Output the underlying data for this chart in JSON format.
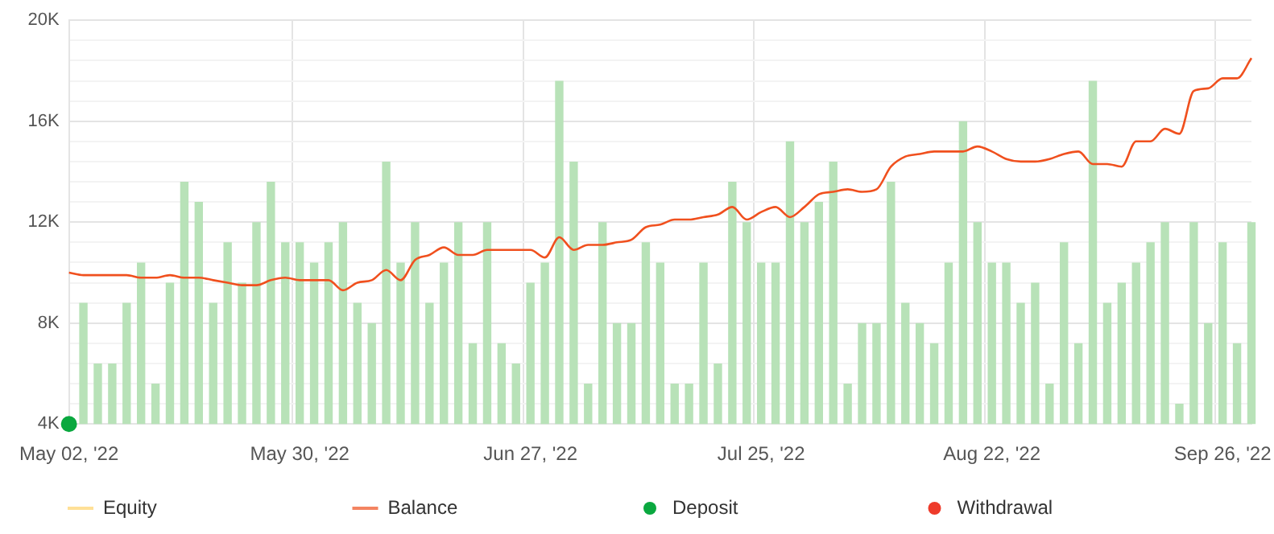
{
  "chart_data": {
    "type": "bar",
    "categories": [
      "May 02, '22",
      null,
      null,
      null,
      null,
      null,
      null,
      null,
      null,
      null,
      null,
      null,
      null,
      null,
      null,
      null,
      "May 30, '22",
      null,
      null,
      null,
      null,
      null,
      null,
      null,
      null,
      null,
      null,
      null,
      null,
      null,
      null,
      null,
      "Jun 27, '22",
      null,
      null,
      null,
      null,
      null,
      null,
      null,
      null,
      null,
      null,
      null,
      null,
      null,
      null,
      null,
      "Jul 25, '22",
      null,
      null,
      null,
      null,
      null,
      null,
      null,
      null,
      null,
      null,
      null,
      null,
      null,
      null,
      null,
      "Aug 22, '22",
      null,
      null,
      null,
      null,
      null,
      null,
      null,
      null,
      null,
      null,
      null,
      null,
      null,
      null,
      null,
      "Sep 26, '22",
      null,
      null
    ],
    "series": [
      {
        "color": "#b8e2b8",
        "values": [
          null,
          8800,
          6400,
          6400,
          8800,
          10400,
          5600,
          9600,
          13600,
          12800,
          8800,
          11200,
          9600,
          12000,
          13600,
          11200,
          11200,
          10400,
          11200,
          12000,
          8800,
          8000,
          14400,
          10400,
          12000,
          8800,
          10400,
          12000,
          7200,
          12000,
          7200,
          6400,
          9600,
          10400,
          17600,
          14400,
          5600,
          12000,
          8000,
          8000,
          11200,
          10400,
          5600,
          5600,
          10400,
          6400,
          13600,
          12000,
          10400,
          10400,
          15200,
          12000,
          12800,
          14400,
          5600,
          8000,
          8000,
          13600,
          8800,
          8000,
          7200,
          10400,
          16000,
          12000,
          10400,
          10400,
          8800,
          9600,
          5600,
          11200,
          7200,
          17600,
          8800,
          9600,
          10400,
          11200,
          12000,
          4800,
          12000,
          8000,
          11200,
          7200,
          12000
        ]
      },
      {
        "type": "line",
        "name": "Equity",
        "color": "#ffd36b",
        "marker": "none",
        "values": [
          null,
          null,
          null,
          null,
          null,
          null,
          null,
          null,
          null,
          null,
          null,
          null,
          null,
          null,
          null,
          null,
          null,
          null,
          null,
          null,
          null,
          null,
          null,
          null,
          null,
          null,
          null,
          null,
          null,
          null,
          null,
          null,
          null,
          null,
          null,
          null,
          null,
          null,
          null,
          null,
          null,
          null,
          null,
          null,
          null,
          null,
          null,
          null,
          null,
          null,
          null,
          null,
          null,
          null,
          null,
          null,
          null,
          null,
          null,
          null,
          null,
          null,
          null,
          null,
          null,
          null,
          null,
          null,
          null,
          null,
          null,
          null,
          null,
          null,
          null,
          null,
          null,
          null,
          null,
          null,
          null,
          null,
          null
        ]
      },
      {
        "type": "line",
        "name": "Balance",
        "color": "#f0501e",
        "marker": "none",
        "values": [
          10000,
          9900,
          9900,
          9900,
          9900,
          9800,
          9800,
          9900,
          9800,
          9800,
          9700,
          9600,
          9500,
          9500,
          9700,
          9800,
          9700,
          9700,
          9700,
          9300,
          9600,
          9700,
          10100,
          9700,
          10500,
          10700,
          11000,
          10700,
          10700,
          10900,
          10900,
          10900,
          10900,
          10600,
          11400,
          10900,
          11100,
          11100,
          11200,
          11300,
          11800,
          11900,
          12100,
          12100,
          12200,
          12300,
          12600,
          12100,
          12400,
          12600,
          12200,
          12600,
          13100,
          13200,
          13300,
          13200,
          13300,
          14200,
          14600,
          14700,
          14800,
          14800,
          14800,
          15000,
          14800,
          14500,
          14400,
          14400,
          14500,
          14700,
          14800,
          14300,
          14300,
          14200,
          15200,
          15200,
          15700,
          15500,
          17200,
          17300,
          17700,
          17700,
          18500
        ]
      },
      {
        "type": "scatter",
        "name": "Deposit",
        "color": "#0aa83f",
        "marker": "circle",
        "x": [
          "May 02, '22"
        ],
        "values": [
          4000
        ]
      },
      {
        "type": "scatter",
        "name": "Withdrawal",
        "color": "#ee3b2b",
        "marker": "circle",
        "values": [
          null,
          null,
          null,
          null,
          null,
          null,
          null,
          null,
          null,
          null,
          null,
          null,
          null,
          null,
          null,
          null,
          null,
          null,
          null,
          null,
          null,
          null,
          null,
          null,
          null,
          null,
          null,
          null,
          null,
          null,
          null,
          null,
          null,
          null,
          null,
          null,
          null,
          null,
          null,
          null,
          null,
          null,
          null,
          null,
          null,
          null,
          null,
          null,
          null,
          null,
          null,
          null,
          null,
          null,
          null,
          null,
          null,
          null,
          null,
          null,
          null,
          null,
          null,
          null,
          null,
          null,
          null,
          null,
          null,
          null,
          null,
          null,
          null,
          null,
          null,
          null,
          null,
          null,
          null,
          null,
          null,
          null,
          null
        ]
      }
    ],
    "ylim": [
      4000,
      20000
    ],
    "yticks": [
      {
        "value": 4000,
        "label": "4K"
      },
      {
        "value": 4800,
        "label": null
      },
      {
        "value": 5600,
        "label": null
      },
      {
        "value": 6400,
        "label": null
      },
      {
        "value": 7200,
        "label": null
      },
      {
        "value": 8000,
        "label": "8K"
      },
      {
        "value": 8800,
        "label": null
      },
      {
        "value": 9600,
        "label": null
      },
      {
        "value": 10400,
        "label": null
      },
      {
        "value": 11200,
        "label": null
      },
      {
        "value": 12000,
        "label": "12K"
      },
      {
        "value": 12800,
        "label": null
      },
      {
        "value": 13600,
        "label": null
      },
      {
        "value": 14400,
        "label": null
      },
      {
        "value": 15200,
        "label": null
      },
      {
        "value": 16000,
        "label": "16K"
      },
      {
        "value": 16800,
        "label": null
      },
      {
        "value": 17600,
        "label": null
      },
      {
        "value": 18400,
        "label": null
      },
      {
        "value": 19200,
        "label": null
      },
      {
        "value": 20000,
        "label": "20K"
      }
    ],
    "grid": true,
    "legend": "bottom"
  }
}
